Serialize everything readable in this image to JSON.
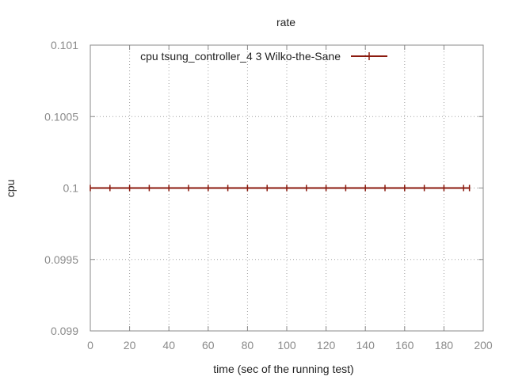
{
  "chart_data": {
    "type": "line",
    "title": "rate",
    "xlabel": "time (sec of the running test)",
    "ylabel": "cpu",
    "xlim": [
      0,
      200
    ],
    "ylim": [
      0.099,
      0.101
    ],
    "x_ticks": [
      "0",
      "20",
      "40",
      "60",
      "80",
      "100",
      "120",
      "140",
      "160",
      "180",
      "200"
    ],
    "y_ticks": [
      "0.101",
      "0.1005",
      "0.1",
      "0.0995",
      "0.099"
    ],
    "grid": true,
    "legend_position": "top",
    "series": [
      {
        "name": "cpu tsung_controller_4 3 Wilko-the-Sane",
        "color": "#8b1a0e",
        "x": [
          0,
          10,
          20,
          30,
          40,
          50,
          60,
          70,
          80,
          90,
          100,
          110,
          120,
          130,
          140,
          150,
          160,
          170,
          180,
          190,
          193
        ],
        "y": [
          0.1,
          0.1,
          0.1,
          0.1,
          0.1,
          0.1,
          0.1,
          0.1,
          0.1,
          0.1,
          0.1,
          0.1,
          0.1,
          0.1,
          0.1,
          0.1,
          0.1,
          0.1,
          0.1,
          0.1,
          0.1
        ]
      }
    ]
  }
}
